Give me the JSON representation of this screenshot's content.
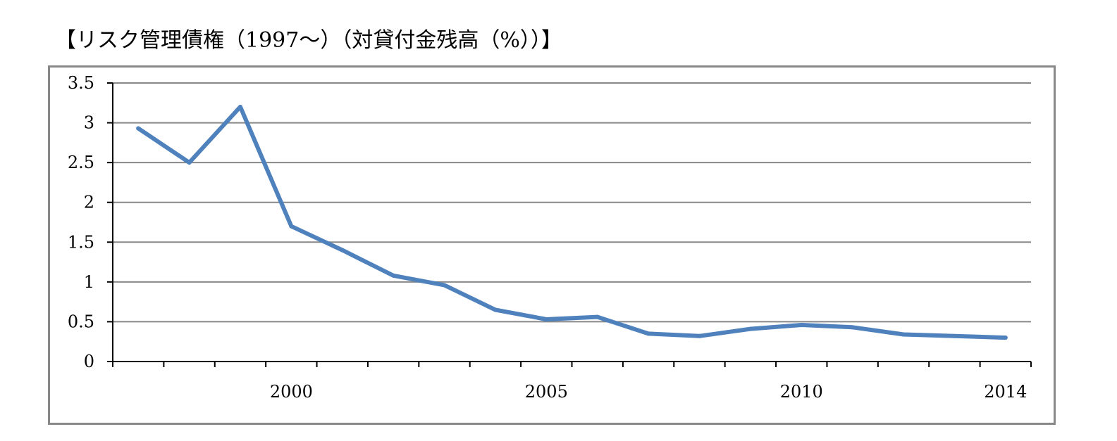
{
  "chart_data": {
    "type": "line",
    "title": "【リスク管理債権（1997～）（対貸付金残高（%））】",
    "xlabel": "",
    "ylabel": "",
    "x": [
      1997,
      1998,
      1999,
      2000,
      2001,
      2002,
      2003,
      2004,
      2005,
      2006,
      2007,
      2008,
      2009,
      2010,
      2011,
      2012,
      2013,
      2014
    ],
    "x_tick_labels": [
      "2000",
      "2005",
      "2010",
      "2014"
    ],
    "x_tick_label_values": [
      2000,
      2005,
      2010,
      2014
    ],
    "y_ticks": [
      "0",
      "0.5",
      "1",
      "1.5",
      "2",
      "2.5",
      "3",
      "3.5"
    ],
    "ylim": [
      0,
      3.5
    ],
    "grid": true,
    "legend": "none",
    "series": [
      {
        "values": [
          2.93,
          2.5,
          3.2,
          1.7,
          1.4,
          1.08,
          0.96,
          0.65,
          0.53,
          0.56,
          0.35,
          0.32,
          0.41,
          0.46,
          0.43,
          0.34,
          0.32,
          0.3
        ],
        "color": "#4f81bd"
      }
    ],
    "colors": {
      "grid": "#888888",
      "axis": "#000000",
      "frame": "#888888"
    }
  }
}
